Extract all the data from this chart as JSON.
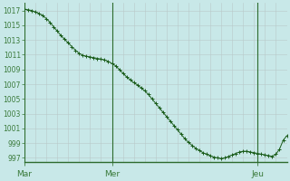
{
  "background_color": "#c8e8e8",
  "plot_bg_color": "#c8e8e8",
  "line_color": "#1a5c1a",
  "marker_color": "#1a5c1a",
  "grid_color_minor": "#b8c8c8",
  "grid_color_major": "#2d6b2d",
  "axis_label_color": "#3a7a3a",
  "ylim": [
    996.5,
    1018.0
  ],
  "yticks": [
    997,
    999,
    1001,
    1003,
    1005,
    1007,
    1009,
    1011,
    1013,
    1015,
    1017
  ],
  "xlabel_ticks": [
    "Mar",
    "Mer",
    "Jeu"
  ],
  "n_points": 73,
  "pressure_values": [
    1017.2,
    1017.1,
    1017.0,
    1016.8,
    1016.6,
    1016.3,
    1015.9,
    1015.4,
    1014.8,
    1014.2,
    1013.6,
    1013.1,
    1012.6,
    1012.1,
    1011.6,
    1011.2,
    1010.9,
    1010.8,
    1010.7,
    1010.6,
    1010.5,
    1010.4,
    1010.3,
    1010.1,
    1009.8,
    1009.5,
    1009.0,
    1008.5,
    1008.0,
    1007.6,
    1007.2,
    1006.9,
    1006.5,
    1006.1,
    1005.6,
    1005.0,
    1004.4,
    1003.8,
    1003.2,
    1002.6,
    1002.0,
    1001.4,
    1000.8,
    1000.2,
    999.6,
    999.1,
    998.7,
    998.3,
    998.0,
    997.7,
    997.5,
    997.3,
    997.1,
    997.0,
    996.9,
    997.0,
    997.2,
    997.4,
    997.6,
    997.8,
    997.9,
    997.9,
    997.8,
    997.7,
    997.6,
    997.5,
    997.4,
    997.3,
    997.2,
    997.5,
    998.2,
    999.4,
    1000.0
  ],
  "mar_idx": 0,
  "mer_idx": 24,
  "jeu_idx": 64,
  "vgrid_step": 3
}
